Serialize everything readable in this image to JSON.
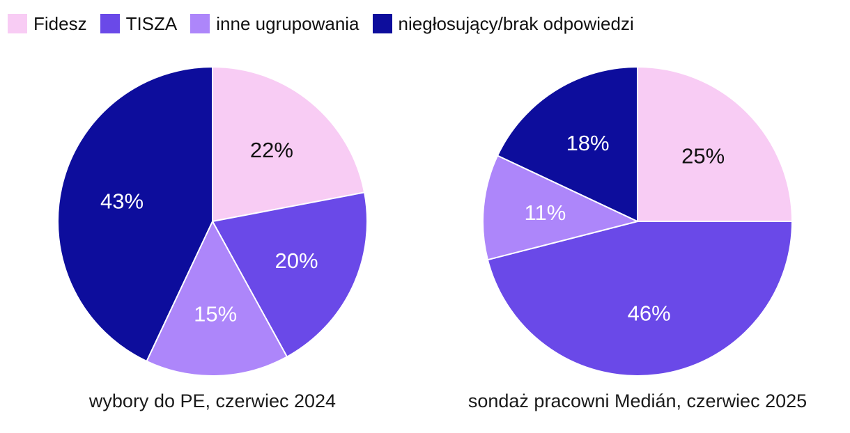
{
  "background_color": "#ffffff",
  "legend": {
    "position": "top-left",
    "items": [
      {
        "label": "Fidesz",
        "color": "#f8ccf4"
      },
      {
        "label": "TISZA",
        "color": "#6a49e8"
      },
      {
        "label": "inne ugrupowania",
        "color": "#ad86fa"
      },
      {
        "label": "niegłosujący/brak odpowiedzi",
        "color": "#0d0d9c"
      }
    ]
  },
  "chart_data": [
    {
      "type": "pie",
      "title": "wybory do PE, czerwiec 2024",
      "categories": [
        "Fidesz",
        "TISZA",
        "inne ugrupowania",
        "niegłosujący/brak odpowiedzi"
      ],
      "values": [
        22,
        20,
        15,
        43
      ],
      "unit": "%",
      "colors": [
        "#f8ccf4",
        "#6a49e8",
        "#ad86fa",
        "#0d0d9c"
      ],
      "label_colors": [
        "#111111",
        "#ffffff",
        "#ffffff",
        "#ffffff"
      ],
      "start_angle_deg": 0,
      "direction": "clockwise",
      "slice_stroke_color": "#ffffff",
      "label_radius_ratio": 0.6
    },
    {
      "type": "pie",
      "title": "sondaż pracowni Medián, czerwiec 2025",
      "categories": [
        "Fidesz",
        "TISZA",
        "inne ugrupowania",
        "niegłosujący/brak odpowiedzi"
      ],
      "values": [
        25,
        46,
        11,
        18
      ],
      "unit": "%",
      "colors": [
        "#f8ccf4",
        "#6a49e8",
        "#ad86fa",
        "#0d0d9c"
      ],
      "label_colors": [
        "#111111",
        "#ffffff",
        "#ffffff",
        "#ffffff"
      ],
      "start_angle_deg": 0,
      "direction": "clockwise",
      "slice_stroke_color": "#ffffff",
      "label_radius_ratio": 0.6
    }
  ]
}
